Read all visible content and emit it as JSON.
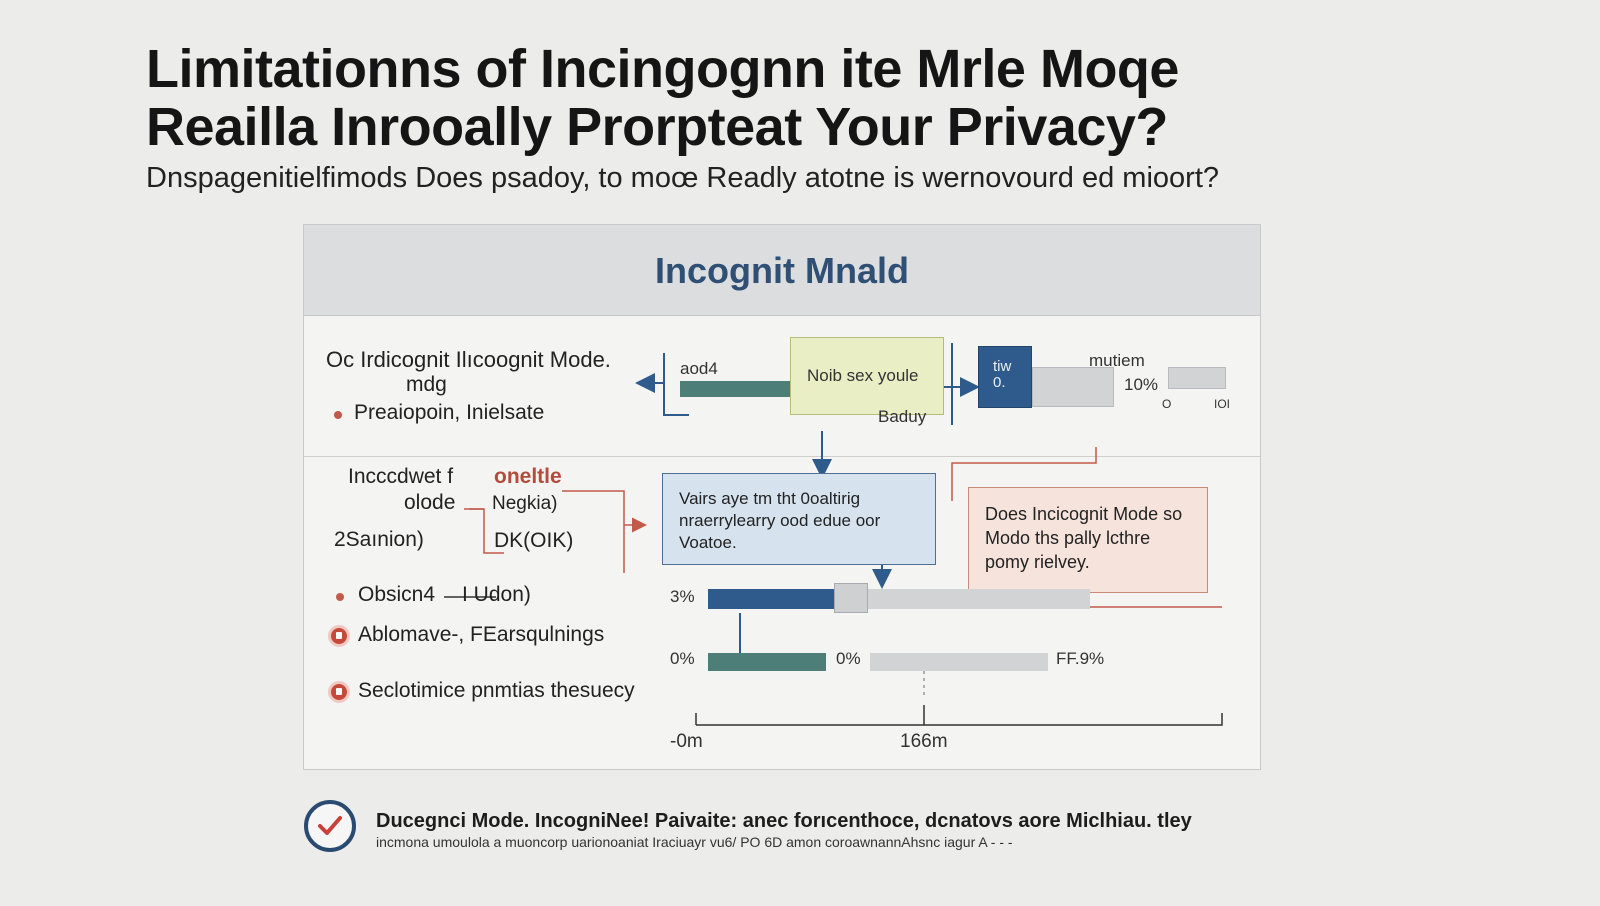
{
  "header": {
    "title_line_1": "Limitationns of Incingognn ite Mrle Moqe",
    "title_line_2": "Reailla Inrooally Prorptеat Your Privacy?",
    "subtitle": "Dnspagenitielfimods Does psadoy, to moœ Readly atotne is wernovourd ed mioort?"
  },
  "panel": {
    "heading": "Incognit Mnald",
    "row1": {
      "label_main": "Oc Irdicognit Ilıcoognit Mode.",
      "label_sub": "mdg",
      "bullet": "Preaiopoin, Inielsate",
      "bar_label": "aod4",
      "note_box": "Noib sex youle",
      "note_caption": "Baduy",
      "blue_box": "tiw\n0.",
      "right_label": "mutiem",
      "right_value": "10%",
      "axis_left": "O",
      "axis_right": "IOI"
    },
    "row2": {
      "label_a1": "Incccdwet f",
      "label_a2": "oneltle",
      "label_b": "olode",
      "label_b_value": "Negkia)",
      "label_c": "2Saınion)",
      "label_c_value": "DK(OIK)",
      "bullet_1": "Obsicn4",
      "bullet_1_value": "I Udon)",
      "bullet_2": "Ablomave-, FEarsqulnings",
      "bullet_3": "Seclotimice pnmtias thesuecy",
      "center_box": "Vairs aye tm tht 0oaltirig nraerrylearry ood edue oor Voatoe.",
      "right_box": "Does Incicognit Mode so Modo ths pally lcthre pomy rielvey.",
      "bar1_label": "3%",
      "bar2_label": "0%",
      "bar2_mid": "0%",
      "bar2_right": "FF.9%",
      "axis_left": "-0m",
      "axis_mid": "166m"
    }
  },
  "footer": {
    "line_1": "Ducegnci Mode. IncogniNee! Paivaite: anec forıcenthoce, dcnatovs aore Miclhiau. tley",
    "line_2": "incmona umoulola a muoncorp uarionoaniat Iraciuayr vu6/ PO 6D amon coroawnannAhsnc iagur A - - -"
  },
  "colors": {
    "accent_blue": "#2f5b8c",
    "teal": "#4e7e78",
    "red": "#c15a4b",
    "yellow_box": "#eaeec4",
    "light_blue_box": "#d6e3ee",
    "pink_box": "#f6e4dc"
  },
  "icons": [
    "check-circle-icon",
    "arrow-right-icon",
    "arrow-left-icon",
    "arrow-down-icon"
  ]
}
